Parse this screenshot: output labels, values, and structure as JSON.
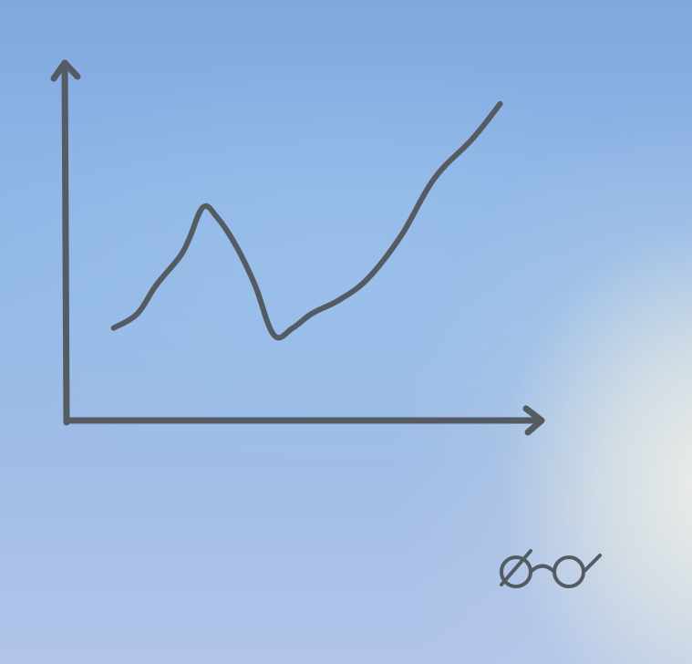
{
  "chart_data": {
    "type": "line",
    "title": "",
    "xlabel": "",
    "ylabel": "",
    "grid": false,
    "legend": "none",
    "xlim": [
      0,
      1
    ],
    "ylim": [
      0,
      1
    ],
    "series": [
      {
        "x": [
          0.1,
          0.15,
          0.19,
          0.24,
          0.26,
          0.29,
          0.32,
          0.36,
          0.4,
          0.44,
          0.48,
          0.52,
          0.58,
          0.64,
          0.71,
          0.78,
          0.86,
          0.92
        ],
        "values": [
          0.26,
          0.3,
          0.38,
          0.46,
          0.51,
          0.6,
          0.57,
          0.49,
          0.38,
          0.24,
          0.26,
          0.3,
          0.34,
          0.4,
          0.52,
          0.68,
          0.79,
          0.89
        ],
        "color": "#555b63"
      }
    ]
  },
  "style": {
    "ink_color": "#555b63"
  },
  "icons": {
    "decoration": "glasses-icon"
  }
}
